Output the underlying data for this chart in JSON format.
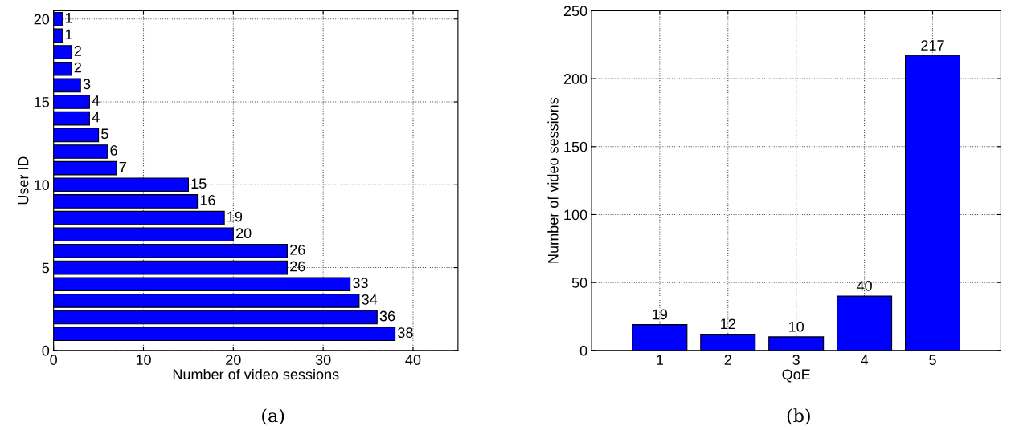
{
  "chart_data": [
    {
      "type": "bar",
      "orientation": "horizontal",
      "x": [
        1,
        2,
        3,
        4,
        5,
        6,
        7,
        8,
        9,
        10,
        11,
        12,
        13,
        14,
        15,
        16,
        17,
        18,
        19,
        20
      ],
      "values": [
        38,
        36,
        34,
        33,
        26,
        26,
        20,
        19,
        16,
        15,
        7,
        6,
        5,
        4,
        4,
        3,
        2,
        2,
        1,
        1
      ],
      "color": "#0000ff",
      "xlabel": "Number of video sessions",
      "ylabel": "User ID",
      "xlim": [
        0,
        45
      ],
      "xticks": [
        0,
        10,
        20,
        30,
        40
      ],
      "ylim": [
        0,
        20.5
      ],
      "yticks": [
        0,
        5,
        10,
        15,
        20
      ],
      "grid": true,
      "data_labels": true,
      "annotations": [
        "(a)"
      ]
    },
    {
      "type": "bar",
      "x": [
        1,
        2,
        3,
        4,
        5
      ],
      "values": [
        19,
        12,
        10,
        40,
        217
      ],
      "color": "#0000ff",
      "xlabel": "QoE",
      "ylabel": "Number of video sessions",
      "xlim": [
        0,
        6
      ],
      "xticks": [
        1,
        2,
        3,
        4,
        5
      ],
      "ylim": [
        0,
        250
      ],
      "yticks": [
        0,
        50,
        100,
        150,
        200,
        250
      ],
      "grid": true,
      "data_labels": true,
      "annotations": [
        "(b)"
      ]
    }
  ]
}
